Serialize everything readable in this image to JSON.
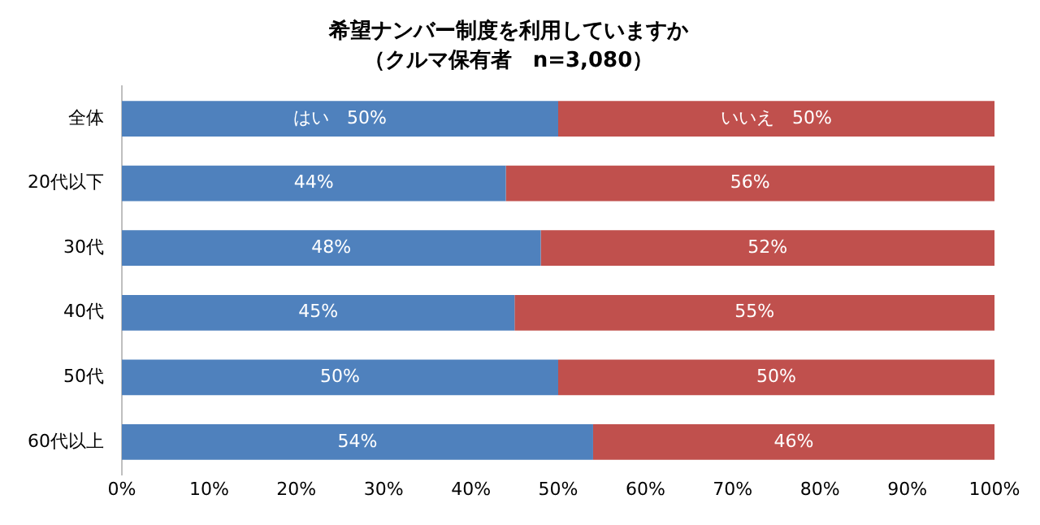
{
  "chart_data": {
    "type": "bar",
    "orientation": "horizontal",
    "stacked": true,
    "title": "希望ナンバー制度を利用していますか",
    "subtitle": "（クルマ保有者　n=3,080）",
    "categories": [
      "全体",
      "20代以下",
      "30代",
      "40代",
      "50代",
      "60代以上"
    ],
    "series": [
      {
        "color": "#4f81bd",
        "values": [
          50,
          44,
          48,
          45,
          50,
          54
        ],
        "value_labels": [
          "はい　50%",
          "44%",
          "48%",
          "45%",
          "50%",
          "54%"
        ]
      },
      {
        "color": "#c0504d",
        "values": [
          50,
          56,
          52,
          55,
          50,
          46
        ],
        "value_labels": [
          "いいえ　50%",
          "56%",
          "52%",
          "55%",
          "50%",
          "46%"
        ]
      }
    ],
    "xlim": [
      0,
      100
    ],
    "xticks": [
      {
        "value": 0,
        "label": "0%"
      },
      {
        "value": 10,
        "label": "10%"
      },
      {
        "value": 20,
        "label": "20%"
      },
      {
        "value": 30,
        "label": "30%"
      },
      {
        "value": 40,
        "label": "40%"
      },
      {
        "value": 50,
        "label": "50%"
      },
      {
        "value": 60,
        "label": "60%"
      },
      {
        "value": 70,
        "label": "70%"
      },
      {
        "value": 80,
        "label": "80%"
      },
      {
        "value": 90,
        "label": "90%"
      },
      {
        "value": 100,
        "label": "100%"
      }
    ],
    "grid": false,
    "legend": false
  }
}
